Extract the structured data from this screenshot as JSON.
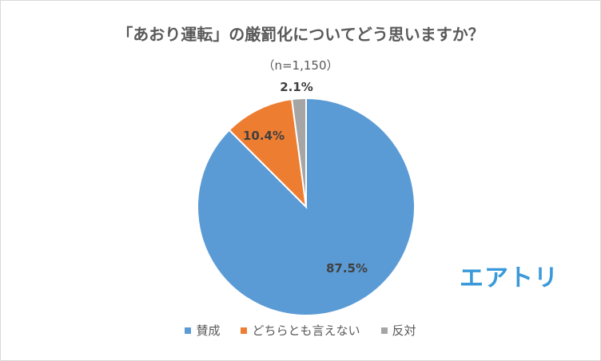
{
  "chart_data": {
    "type": "pie",
    "title": "「あおり運転」の厳罰化についてどう思いますか？",
    "subtitle": "（n=1,150）",
    "categories": [
      "賛成",
      "どちらとも言えない",
      "反対"
    ],
    "values": [
      87.5,
      10.4,
      2.1
    ],
    "data_labels": [
      "87.5%",
      "10.4%",
      "2.1%"
    ],
    "colors": [
      "#5b9bd5",
      "#ed7d31",
      "#a5a5a5"
    ],
    "start_angle": "12 o'clock, clockwise",
    "legend_position": "bottom"
  },
  "logo": {
    "text": "エアトリ",
    "color": "#3a9ad9"
  }
}
